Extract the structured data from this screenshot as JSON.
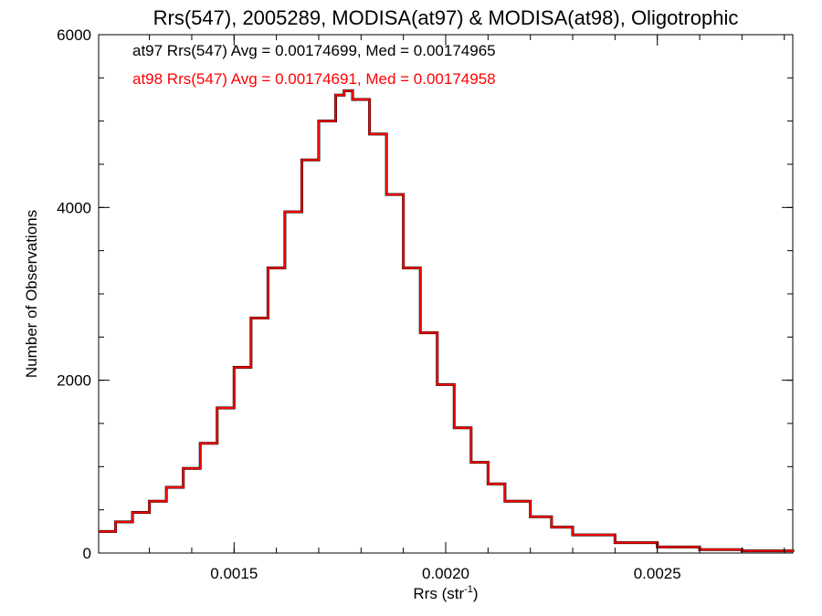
{
  "chart_data": {
    "type": "line",
    "title": "Rrs(547), 2005289, MODISA(at97) & MODISA(at98), Oligotrophic",
    "xlabel_main": "Rrs (str",
    "xlabel_sup": "-1",
    "xlabel_close": ")",
    "ylabel": "Number of Observations",
    "xlim": [
      0.00118,
      0.00282
    ],
    "ylim": [
      0,
      6000
    ],
    "x_ticks": [
      0.0015,
      0.002,
      0.0025
    ],
    "x_tick_labels": [
      "0.0015",
      "0.0020",
      "0.0025"
    ],
    "y_ticks": [
      0,
      2000,
      4000,
      6000
    ],
    "y_tick_labels": [
      "0",
      "2000",
      "4000",
      "6000"
    ],
    "grid": false,
    "legend_position": "top-left",
    "series": [
      {
        "name": "at97 Rrs(547) Avg = 0.00174699, Med = 0.00174965",
        "color": "#000000",
        "points": [
          [
            0.00118,
            250
          ],
          [
            0.00122,
            360
          ],
          [
            0.00126,
            470
          ],
          [
            0.0013,
            600
          ],
          [
            0.00134,
            760
          ],
          [
            0.00138,
            980
          ],
          [
            0.00142,
            1270
          ],
          [
            0.00146,
            1680
          ],
          [
            0.0015,
            2150
          ],
          [
            0.00154,
            2720
          ],
          [
            0.00158,
            3300
          ],
          [
            0.00162,
            3950
          ],
          [
            0.00166,
            4550
          ],
          [
            0.0017,
            5000
          ],
          [
            0.00174,
            5300
          ],
          [
            0.00176,
            5350
          ],
          [
            0.00178,
            5250
          ],
          [
            0.00182,
            4850
          ],
          [
            0.00186,
            4150
          ],
          [
            0.0019,
            3300
          ],
          [
            0.00194,
            2550
          ],
          [
            0.00198,
            1950
          ],
          [
            0.00202,
            1450
          ],
          [
            0.00206,
            1050
          ],
          [
            0.0021,
            800
          ],
          [
            0.00214,
            600
          ],
          [
            0.0022,
            420
          ],
          [
            0.00225,
            300
          ],
          [
            0.0023,
            210
          ],
          [
            0.0024,
            120
          ],
          [
            0.0025,
            70
          ],
          [
            0.0026,
            40
          ],
          [
            0.0027,
            25
          ],
          [
            0.00282,
            10
          ]
        ]
      },
      {
        "name": "at98 Rrs(547) Avg = 0.00174691, Med = 0.00174958",
        "color": "#ff0000",
        "points": [
          [
            0.00118,
            250
          ],
          [
            0.00122,
            360
          ],
          [
            0.00126,
            470
          ],
          [
            0.0013,
            600
          ],
          [
            0.00134,
            760
          ],
          [
            0.00138,
            980
          ],
          [
            0.00142,
            1270
          ],
          [
            0.00146,
            1680
          ],
          [
            0.0015,
            2150
          ],
          [
            0.00154,
            2720
          ],
          [
            0.00158,
            3300
          ],
          [
            0.00162,
            3950
          ],
          [
            0.00166,
            4550
          ],
          [
            0.0017,
            5000
          ],
          [
            0.00174,
            5300
          ],
          [
            0.00176,
            5350
          ],
          [
            0.00178,
            5250
          ],
          [
            0.00182,
            4850
          ],
          [
            0.00186,
            4150
          ],
          [
            0.0019,
            3300
          ],
          [
            0.00194,
            2550
          ],
          [
            0.00198,
            1950
          ],
          [
            0.00202,
            1450
          ],
          [
            0.00206,
            1050
          ],
          [
            0.0021,
            800
          ],
          [
            0.00214,
            600
          ],
          [
            0.0022,
            420
          ],
          [
            0.00225,
            300
          ],
          [
            0.0023,
            210
          ],
          [
            0.0024,
            120
          ],
          [
            0.0025,
            70
          ],
          [
            0.0026,
            40
          ],
          [
            0.0027,
            25
          ],
          [
            0.00282,
            10
          ]
        ]
      }
    ]
  }
}
